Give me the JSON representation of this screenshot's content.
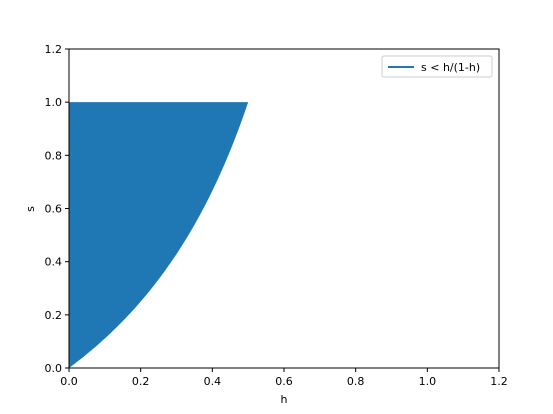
{
  "chart_data": {
    "type": "area",
    "title": "",
    "xlabel": "h",
    "ylabel": "s",
    "xlim": [
      0.0,
      1.2
    ],
    "ylim": [
      0.0,
      1.2
    ],
    "xticks": [
      "0.0",
      "0.2",
      "0.4",
      "0.6",
      "0.8",
      "1.0",
      "1.2"
    ],
    "yticks": [
      "0.0",
      "0.2",
      "0.4",
      "0.6",
      "0.8",
      "1.0",
      "1.2"
    ],
    "grid": false,
    "legend_position": "top-right",
    "series": [
      {
        "name": "s < h/(1-h)",
        "color": "#1f77b4",
        "boundary_function": "h/(1-h)",
        "upper_limit": 1.0,
        "x": [
          0.0,
          0.05,
          0.1,
          0.15,
          0.2,
          0.25,
          0.3,
          0.35,
          0.4,
          0.45,
          0.5
        ],
        "y": [
          0.0,
          0.053,
          0.111,
          0.176,
          0.25,
          0.333,
          0.429,
          0.538,
          0.667,
          0.818,
          1.0
        ]
      }
    ]
  }
}
